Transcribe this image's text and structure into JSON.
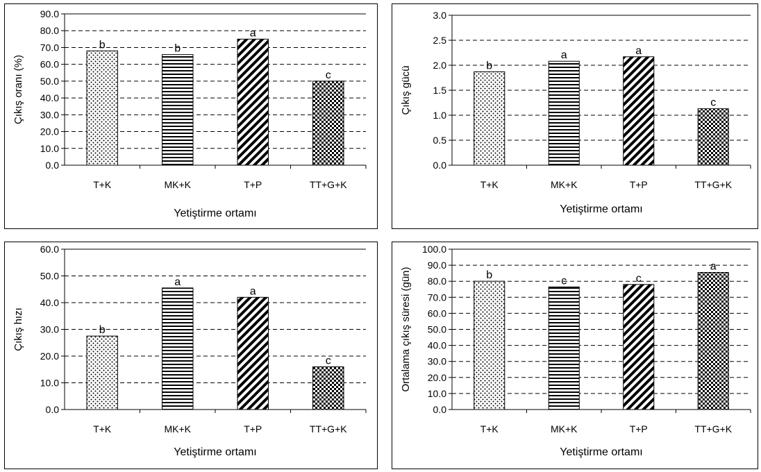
{
  "chart_data": [
    {
      "type": "bar",
      "categories": [
        "T+K",
        "MK+K",
        "T+P",
        "TT+G+K"
      ],
      "values": [
        68.0,
        65.8,
        75.0,
        50.0
      ],
      "letters": [
        "b",
        "b",
        "a",
        "c"
      ],
      "patterns": [
        "dots",
        "hlines",
        "diag",
        "checker"
      ],
      "ylabel": "Çıkış oranı (%)",
      "xlabel": "Yetiştirme ortamı",
      "ylim": [
        0,
        90
      ],
      "ystep": 10,
      "yticks": [
        "0.0",
        "10.0",
        "20.0",
        "30.0",
        "40.0",
        "50.0",
        "60.0",
        "70.0",
        "80.0",
        "90.0"
      ],
      "grid": true
    },
    {
      "type": "bar",
      "categories": [
        "T+K",
        "MK+K",
        "T+P",
        "TT+G+K"
      ],
      "values": [
        1.87,
        2.08,
        2.17,
        1.13
      ],
      "letters": [
        "b",
        "a",
        "a",
        "c"
      ],
      "patterns": [
        "dots",
        "hlines",
        "diag",
        "checker"
      ],
      "ylabel": "Çıkış gücü",
      "xlabel": "Yetiştirme ortamı",
      "ylim": [
        0,
        3
      ],
      "ystep": 0.5,
      "yticks": [
        "0.0",
        "0.5",
        "1.0",
        "1.5",
        "2.0",
        "2.5",
        "3.0"
      ],
      "grid": true
    },
    {
      "type": "bar",
      "categories": [
        "T+K",
        "MK+K",
        "T+P",
        "TT+G+K"
      ],
      "values": [
        27.5,
        45.5,
        42.0,
        16.0
      ],
      "letters": [
        "b",
        "a",
        "a",
        "c"
      ],
      "patterns": [
        "dots",
        "hlines",
        "diag",
        "checker"
      ],
      "ylabel": "Çıkış hızı",
      "xlabel": "Yetiştirme ortamı",
      "ylim": [
        0,
        60
      ],
      "ystep": 10,
      "yticks": [
        "0.0",
        "10.0",
        "20.0",
        "30.0",
        "40.0",
        "50.0",
        "60.0"
      ],
      "grid": true
    },
    {
      "type": "bar",
      "categories": [
        "T+K",
        "MK+K",
        "T+P",
        "TT+G+K"
      ],
      "values": [
        80.0,
        76.5,
        78.0,
        85.5
      ],
      "letters": [
        "b",
        "c",
        "c",
        "a"
      ],
      "patterns": [
        "dots",
        "hlines",
        "diag",
        "checker"
      ],
      "ylabel": "Ortalama çıkış süresi (gün)",
      "xlabel": "Yetiştirme ortamı",
      "ylim": [
        0,
        100
      ],
      "ystep": 10,
      "yticks": [
        "0.0",
        "10.0",
        "20.0",
        "30.0",
        "40.0",
        "50.0",
        "60.0",
        "70.0",
        "80.0",
        "90.0",
        "100.0"
      ],
      "grid": true
    }
  ]
}
